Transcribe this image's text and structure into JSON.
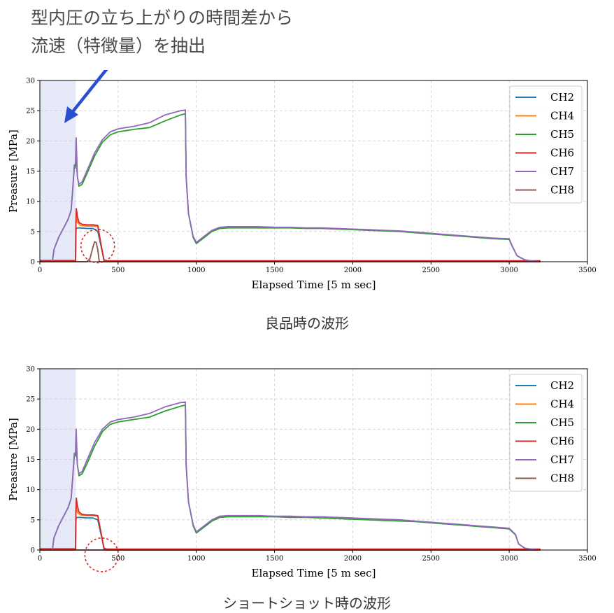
{
  "header": {
    "line1": "型内圧の立ち上がりの時間差から",
    "line2": "流速（特徴量）を抽出"
  },
  "captions": {
    "good": "良品時の波形",
    "short": "ショートショット時の波形"
  },
  "colors": {
    "CH2": "#1f77b4",
    "CH4": "#ff7f0e",
    "CH5": "#2ca02c",
    "CH6": "#d62728",
    "CH7": "#9467bd",
    "CH8": "#8c564b",
    "highlight": "#e6eaf8",
    "arrow": "#2a4fd0",
    "circle": "#d62728"
  },
  "chart_data": [
    {
      "type": "line",
      "title": "",
      "xlabel": "Elapsed Time [5 m sec]",
      "ylabel": "Preasure [MPa]",
      "xlim": [
        0,
        3500
      ],
      "ylim": [
        0,
        30
      ],
      "xticks": [
        0,
        500,
        1000,
        1500,
        2000,
        2500,
        3000,
        3500
      ],
      "yticks": [
        0,
        5,
        10,
        15,
        20,
        25,
        30
      ],
      "grid": true,
      "legend_position": "top-right",
      "highlight_region": [
        0,
        230
      ],
      "series": [
        {
          "name": "CH2",
          "x": [
            0,
            228,
            230,
            232,
            240,
            260,
            300,
            340,
            370,
            400,
            410,
            420,
            3200
          ],
          "y": [
            0,
            0,
            4,
            5.5,
            5.6,
            5.6,
            5.5,
            5.5,
            5.0,
            1.5,
            0.1,
            0,
            0
          ]
        },
        {
          "name": "CH4",
          "x": [
            0,
            228,
            230,
            232,
            240,
            260,
            300,
            340,
            370,
            390,
            410,
            430,
            3200
          ],
          "y": [
            0,
            0,
            6,
            7.5,
            6.5,
            6.0,
            5.9,
            5.9,
            5.8,
            3,
            0.3,
            0,
            0
          ]
        },
        {
          "name": "CH5",
          "x": [
            0,
            80,
            90,
            120,
            150,
            180,
            200,
            210,
            220,
            225,
            228,
            232,
            240,
            250,
            270,
            300,
            350,
            400,
            450,
            500,
            550,
            600,
            700,
            800,
            900,
            930,
            935,
            950,
            980,
            1000,
            1050,
            1100,
            1150,
            1200,
            1300,
            1400,
            1500,
            1600,
            1700,
            1800,
            1900,
            2000,
            2100,
            2200,
            2300,
            2400,
            2500,
            2600,
            2700,
            2800,
            2900,
            3000,
            3020,
            3050,
            3100,
            3150,
            3200
          ],
          "y": [
            0,
            0,
            2,
            4,
            5.5,
            7,
            8.5,
            12,
            15.5,
            15.5,
            16,
            17,
            14,
            12.5,
            12.8,
            14.5,
            17.5,
            19.8,
            21,
            21.5,
            21.7,
            21.9,
            22.2,
            23.3,
            24.3,
            24.5,
            14,
            8,
            4,
            3,
            4,
            5,
            5.5,
            5.6,
            5.6,
            5.6,
            5.6,
            5.6,
            5.5,
            5.5,
            5.4,
            5.3,
            5.2,
            5.1,
            5.0,
            4.8,
            4.6,
            4.4,
            4.2,
            4.0,
            3.8,
            3.7,
            2.5,
            1,
            0.3,
            0.1,
            0
          ]
        },
        {
          "name": "CH6",
          "x": [
            0,
            228,
            230,
            233,
            240,
            250,
            270,
            300,
            340,
            370,
            390,
            410,
            430,
            3200
          ],
          "y": [
            0.2,
            0.2,
            6,
            8.8,
            7.5,
            6.5,
            6.2,
            6.1,
            6.1,
            6.0,
            3,
            0.3,
            0.15,
            0.15
          ]
        },
        {
          "name": "CH7",
          "x": [
            0,
            80,
            90,
            120,
            150,
            180,
            200,
            210,
            220,
            225,
            228,
            232,
            240,
            250,
            270,
            300,
            350,
            400,
            450,
            500,
            550,
            600,
            700,
            800,
            900,
            930,
            935,
            950,
            980,
            1000,
            1050,
            1100,
            1150,
            1200,
            1300,
            1400,
            1500,
            1600,
            1700,
            1800,
            1900,
            2000,
            2100,
            2200,
            2300,
            2400,
            2500,
            2600,
            2700,
            2800,
            2900,
            3000,
            3020,
            3050,
            3100,
            3150,
            3200
          ],
          "y": [
            0,
            0,
            2,
            4,
            5.5,
            7,
            8.5,
            12,
            16,
            16,
            16.5,
            20.5,
            14,
            12.8,
            13.2,
            15,
            18,
            20.2,
            21.5,
            22.0,
            22.2,
            22.4,
            23.0,
            24.3,
            25.0,
            25.1,
            14,
            8,
            4.2,
            3.2,
            4.2,
            5.2,
            5.7,
            5.8,
            5.8,
            5.8,
            5.7,
            5.7,
            5.6,
            5.6,
            5.5,
            5.4,
            5.3,
            5.2,
            5.1,
            4.9,
            4.7,
            4.5,
            4.3,
            4.1,
            3.9,
            3.8,
            2.6,
            1,
            0.3,
            0.1,
            0
          ]
        },
        {
          "name": "CH8",
          "x": [
            0,
            300,
            320,
            340,
            350,
            360,
            370,
            380,
            3200
          ],
          "y": [
            0,
            0,
            0.5,
            2.5,
            3.3,
            3.2,
            2,
            0,
            0
          ]
        }
      ]
    },
    {
      "type": "line",
      "title": "",
      "xlabel": "Elapsed Time [5 m sec]",
      "ylabel": "Preasure [MPa]",
      "xlim": [
        0,
        3500
      ],
      "ylim": [
        0,
        30
      ],
      "xticks": [
        0,
        500,
        1000,
        1500,
        2000,
        2500,
        3000,
        3500
      ],
      "yticks": [
        0,
        5,
        10,
        15,
        20,
        25,
        30
      ],
      "grid": true,
      "legend_position": "top-right",
      "highlight_region": [
        0,
        230
      ],
      "series": [
        {
          "name": "CH2",
          "x": [
            0,
            228,
            230,
            232,
            240,
            260,
            300,
            340,
            370,
            400,
            410,
            420,
            3200
          ],
          "y": [
            0,
            0,
            4,
            5.3,
            5.4,
            5.4,
            5.3,
            5.3,
            5.0,
            1.5,
            0.1,
            0,
            0
          ]
        },
        {
          "name": "CH4",
          "x": [
            0,
            228,
            230,
            232,
            240,
            260,
            300,
            340,
            370,
            390,
            410,
            430,
            3200
          ],
          "y": [
            0,
            0,
            6,
            7.3,
            6.2,
            5.8,
            5.7,
            5.7,
            5.6,
            3,
            0.3,
            0,
            0
          ]
        },
        {
          "name": "CH5",
          "x": [
            0,
            80,
            90,
            120,
            150,
            180,
            200,
            210,
            220,
            225,
            228,
            232,
            240,
            250,
            270,
            300,
            350,
            400,
            450,
            500,
            550,
            600,
            700,
            800,
            900,
            930,
            935,
            950,
            980,
            1000,
            1050,
            1100,
            1150,
            1200,
            1300,
            1400,
            1500,
            1600,
            1700,
            1800,
            1900,
            2000,
            2100,
            2200,
            2300,
            2400,
            2500,
            2600,
            2700,
            2800,
            2900,
            3000,
            3040,
            3060,
            3100,
            3150,
            3200
          ],
          "y": [
            0,
            0,
            2,
            4,
            5.5,
            7,
            8.5,
            12,
            15.5,
            15.5,
            15.8,
            17,
            14,
            12.3,
            12.6,
            14.2,
            17.2,
            19.6,
            20.8,
            21.2,
            21.4,
            21.6,
            22.0,
            23.0,
            23.8,
            24.0,
            14,
            8,
            4,
            2.8,
            3.8,
            4.8,
            5.4,
            5.5,
            5.5,
            5.5,
            5.5,
            5.4,
            5.4,
            5.3,
            5.2,
            5.1,
            5.0,
            4.9,
            4.8,
            4.7,
            4.5,
            4.3,
            4.1,
            3.9,
            3.7,
            3.5,
            2.5,
            1,
            0.3,
            0.1,
            0
          ]
        },
        {
          "name": "CH6",
          "x": [
            0,
            228,
            230,
            233,
            240,
            250,
            270,
            300,
            340,
            370,
            390,
            410,
            430,
            3200
          ],
          "y": [
            0.2,
            0.2,
            6,
            8.6,
            7.3,
            6.3,
            5.9,
            5.8,
            5.8,
            5.7,
            3,
            0.3,
            0.15,
            0.15
          ]
        },
        {
          "name": "CH7",
          "x": [
            0,
            80,
            90,
            120,
            150,
            180,
            200,
            210,
            220,
            225,
            228,
            232,
            240,
            250,
            270,
            300,
            350,
            400,
            450,
            500,
            550,
            600,
            700,
            800,
            900,
            930,
            935,
            950,
            980,
            1000,
            1050,
            1100,
            1150,
            1200,
            1300,
            1400,
            1500,
            1600,
            1700,
            1800,
            1900,
            2000,
            2100,
            2200,
            2300,
            2400,
            2500,
            2600,
            2700,
            2800,
            2900,
            3000,
            3040,
            3060,
            3100,
            3150,
            3200
          ],
          "y": [
            0,
            0,
            2,
            4,
            5.5,
            7,
            8.5,
            12,
            16,
            16,
            16.3,
            20,
            14,
            12.6,
            13.0,
            14.8,
            17.8,
            20.0,
            21.2,
            21.6,
            21.8,
            22.0,
            22.6,
            23.7,
            24.4,
            24.5,
            14,
            8,
            4.2,
            3.0,
            4.0,
            5.0,
            5.6,
            5.7,
            5.7,
            5.7,
            5.6,
            5.6,
            5.5,
            5.5,
            5.4,
            5.3,
            5.2,
            5.1,
            5.0,
            4.8,
            4.6,
            4.4,
            4.2,
            4.0,
            3.8,
            3.6,
            2.6,
            1,
            0.3,
            0.1,
            0
          ]
        },
        {
          "name": "CH8",
          "x": [
            0,
            3200
          ],
          "y": [
            0,
            0
          ]
        }
      ]
    }
  ]
}
